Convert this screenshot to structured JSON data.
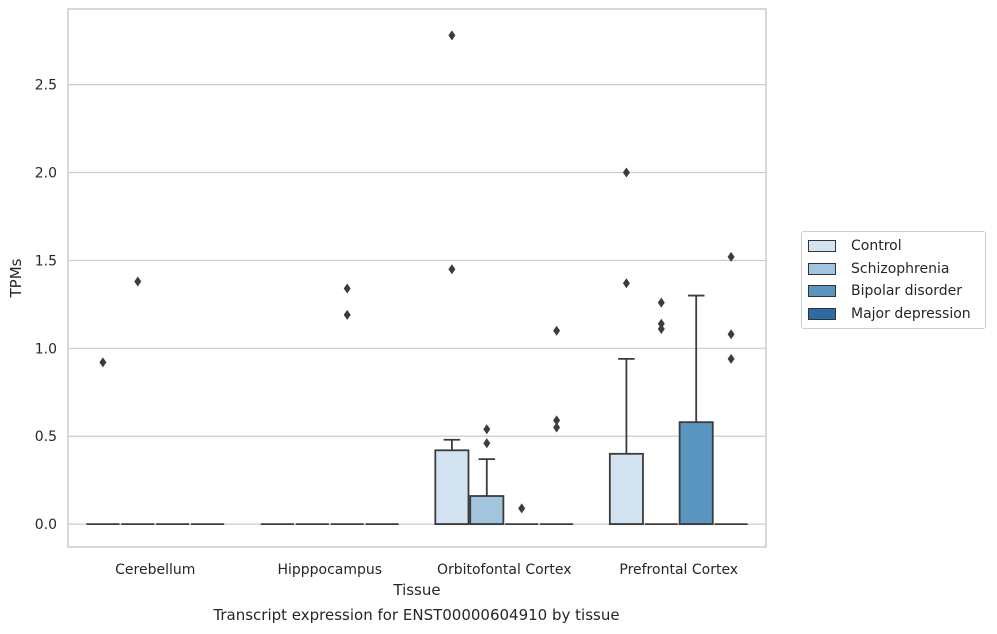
{
  "chart_data": {
    "type": "box",
    "xlabel": "Tissue",
    "ylabel": "TPMs",
    "caption": "Transcript expression for ENST00000604910 by tissue",
    "categories": [
      "Cerebellum",
      "Hipppocampus",
      "Orbitofontal Cortex",
      "Prefrontal Cortex"
    ],
    "ylim": [
      -0.13,
      2.93
    ],
    "yticks": [
      0.0,
      0.5,
      1.0,
      1.5,
      2.0,
      2.5
    ],
    "ytick_labels": [
      "0.0",
      "0.5",
      "1.0",
      "1.5",
      "2.0",
      "2.5"
    ],
    "grid": "horizontal",
    "legend_position": "right",
    "series": [
      {
        "name": "Control",
        "color": "#d3e3f2",
        "boxes": [
          {
            "q1": 0,
            "q3": 0,
            "median": 0,
            "whisker_low": 0,
            "whisker_high": 0,
            "outliers": [
              0.92
            ]
          },
          {
            "q1": 0,
            "q3": 0,
            "median": 0,
            "whisker_low": 0,
            "whisker_high": 0,
            "outliers": []
          },
          {
            "q1": 0,
            "q3": 0.42,
            "median": 0,
            "whisker_low": 0,
            "whisker_high": 0.48,
            "outliers": [
              1.45,
              2.78
            ]
          },
          {
            "q1": 0,
            "q3": 0.4,
            "median": 0,
            "whisker_low": 0,
            "whisker_high": 0.94,
            "outliers": [
              1.37,
              2.0
            ]
          }
        ]
      },
      {
        "name": "Schizophrenia",
        "color": "#a2c4dd",
        "boxes": [
          {
            "q1": 0,
            "q3": 0,
            "median": 0,
            "whisker_low": 0,
            "whisker_high": 0,
            "outliers": [
              1.38
            ]
          },
          {
            "q1": 0,
            "q3": 0,
            "median": 0,
            "whisker_low": 0,
            "whisker_high": 0,
            "outliers": []
          },
          {
            "q1": 0,
            "q3": 0.16,
            "median": 0,
            "whisker_low": 0,
            "whisker_high": 0.37,
            "outliers": [
              0.46,
              0.54
            ]
          },
          {
            "q1": 0,
            "q3": 0,
            "median": 0,
            "whisker_low": 0,
            "whisker_high": 0,
            "outliers": [
              1.11,
              1.14,
              1.26
            ]
          }
        ]
      },
      {
        "name": "Bipolar disorder",
        "color": "#5a95bf",
        "boxes": [
          {
            "q1": 0,
            "q3": 0,
            "median": 0,
            "whisker_low": 0,
            "whisker_high": 0,
            "outliers": []
          },
          {
            "q1": 0,
            "q3": 0,
            "median": 0,
            "whisker_low": 0,
            "whisker_high": 0,
            "outliers": [
              1.19,
              1.34
            ]
          },
          {
            "q1": 0,
            "q3": 0,
            "median": 0,
            "whisker_low": 0,
            "whisker_high": 0,
            "outliers": [
              0.09
            ]
          },
          {
            "q1": 0,
            "q3": 0.58,
            "median": 0,
            "whisker_low": 0,
            "whisker_high": 1.3,
            "outliers": []
          }
        ]
      },
      {
        "name": "Major depression",
        "color": "#2f6aa5",
        "boxes": [
          {
            "q1": 0,
            "q3": 0,
            "median": 0,
            "whisker_low": 0,
            "whisker_high": 0,
            "outliers": []
          },
          {
            "q1": 0,
            "q3": 0,
            "median": 0,
            "whisker_low": 0,
            "whisker_high": 0,
            "outliers": []
          },
          {
            "q1": 0,
            "q3": 0,
            "median": 0,
            "whisker_low": 0,
            "whisker_high": 0,
            "outliers": [
              0.55,
              0.59,
              1.1
            ]
          },
          {
            "q1": 0,
            "q3": 0,
            "median": 0,
            "whisker_low": 0,
            "whisker_high": 0,
            "outliers": [
              0.94,
              1.08,
              1.52
            ]
          }
        ]
      }
    ]
  }
}
